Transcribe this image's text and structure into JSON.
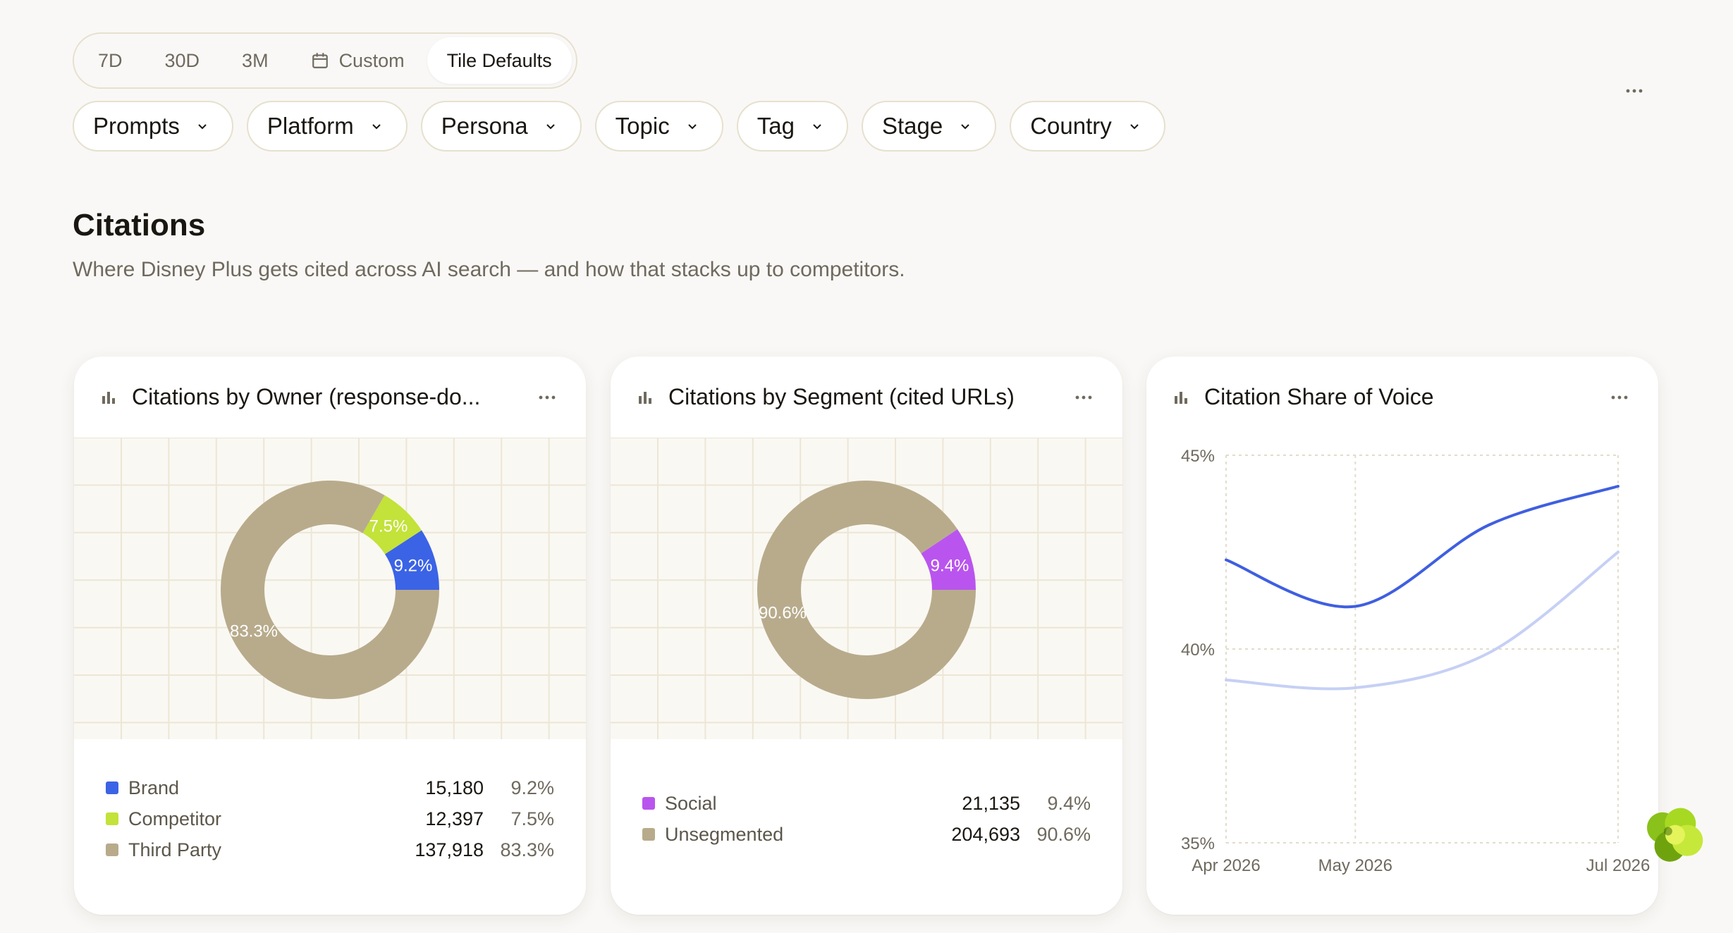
{
  "range": {
    "options": [
      {
        "label": "7D",
        "active": false
      },
      {
        "label": "30D",
        "active": false
      },
      {
        "label": "3M",
        "active": false
      },
      {
        "label": "Custom",
        "active": false,
        "icon": "calendar-icon"
      },
      {
        "label": "Tile Defaults",
        "active": true
      }
    ]
  },
  "filters": [
    "Prompts",
    "Platform",
    "Persona",
    "Topic",
    "Tag",
    "Stage",
    "Country"
  ],
  "section": {
    "title": "Citations",
    "subtitle": "Where Disney Plus gets cited across AI search — and how that stacks up to competitors."
  },
  "cards": {
    "owner": {
      "title": "Citations by Owner (response-do...",
      "legend": [
        {
          "label": "Brand",
          "value": "15,180",
          "pct": "9.2%",
          "color": "#3b63e6"
        },
        {
          "label": "Competitor",
          "value": "12,397",
          "pct": "7.5%",
          "color": "#c3e23a"
        },
        {
          "label": "Third Party",
          "value": "137,918",
          "pct": "83.3%",
          "color": "#b8ab8c"
        }
      ]
    },
    "segment": {
      "title": "Citations by Segment (cited URLs)",
      "legend": [
        {
          "label": "Social",
          "value": "21,135",
          "pct": "9.4%",
          "color": "#b955ee"
        },
        {
          "label": "Unsegmented",
          "value": "204,693",
          "pct": "90.6%",
          "color": "#b8ab8c"
        }
      ]
    },
    "sov": {
      "title": "Citation Share of Voice"
    }
  },
  "chart_data": [
    {
      "type": "pie",
      "donut": true,
      "labels": [
        "Brand",
        "Competitor",
        "Third Party"
      ],
      "values": [
        15180,
        12397,
        137918
      ],
      "percent_labels": [
        "9.2%",
        "7.5%",
        "83.3%"
      ],
      "colors": [
        "#3b63e6",
        "#c3e23a",
        "#b8ab8c"
      ]
    },
    {
      "type": "pie",
      "donut": true,
      "labels": [
        "Social",
        "Unsegmented"
      ],
      "values": [
        21135,
        204693
      ],
      "percent_labels": [
        "9.4%",
        "90.6%"
      ],
      "colors": [
        "#b955ee",
        "#b8ab8c"
      ]
    },
    {
      "type": "line",
      "x": [
        "2026-04-01",
        "2026-05-01",
        "2026-06-01",
        "2026-07-01"
      ],
      "xtick_labels": [
        "Apr 2026",
        "May 2026",
        "Jul 2026"
      ],
      "xtick_positions": [
        "2026-04-01",
        "2026-05-01",
        "2026-07-01"
      ],
      "ylim": [
        35,
        45
      ],
      "yticks": [
        35,
        40,
        45
      ],
      "ytick_labels": [
        "35%",
        "40%",
        "45%"
      ],
      "series": [
        {
          "color": "#3f5fe0",
          "values": [
            42.3,
            41.1,
            43.2,
            44.2
          ]
        },
        {
          "color": "#c6d0f5",
          "values": [
            39.2,
            39.0,
            39.9,
            42.5
          ]
        }
      ],
      "grid": "dashed"
    }
  ],
  "icons": {
    "card_title": "bar-chart-icon",
    "more": "more-horizontal-icon",
    "chevron": "chevron-down-icon",
    "floating": "assistant-logo-icon"
  }
}
